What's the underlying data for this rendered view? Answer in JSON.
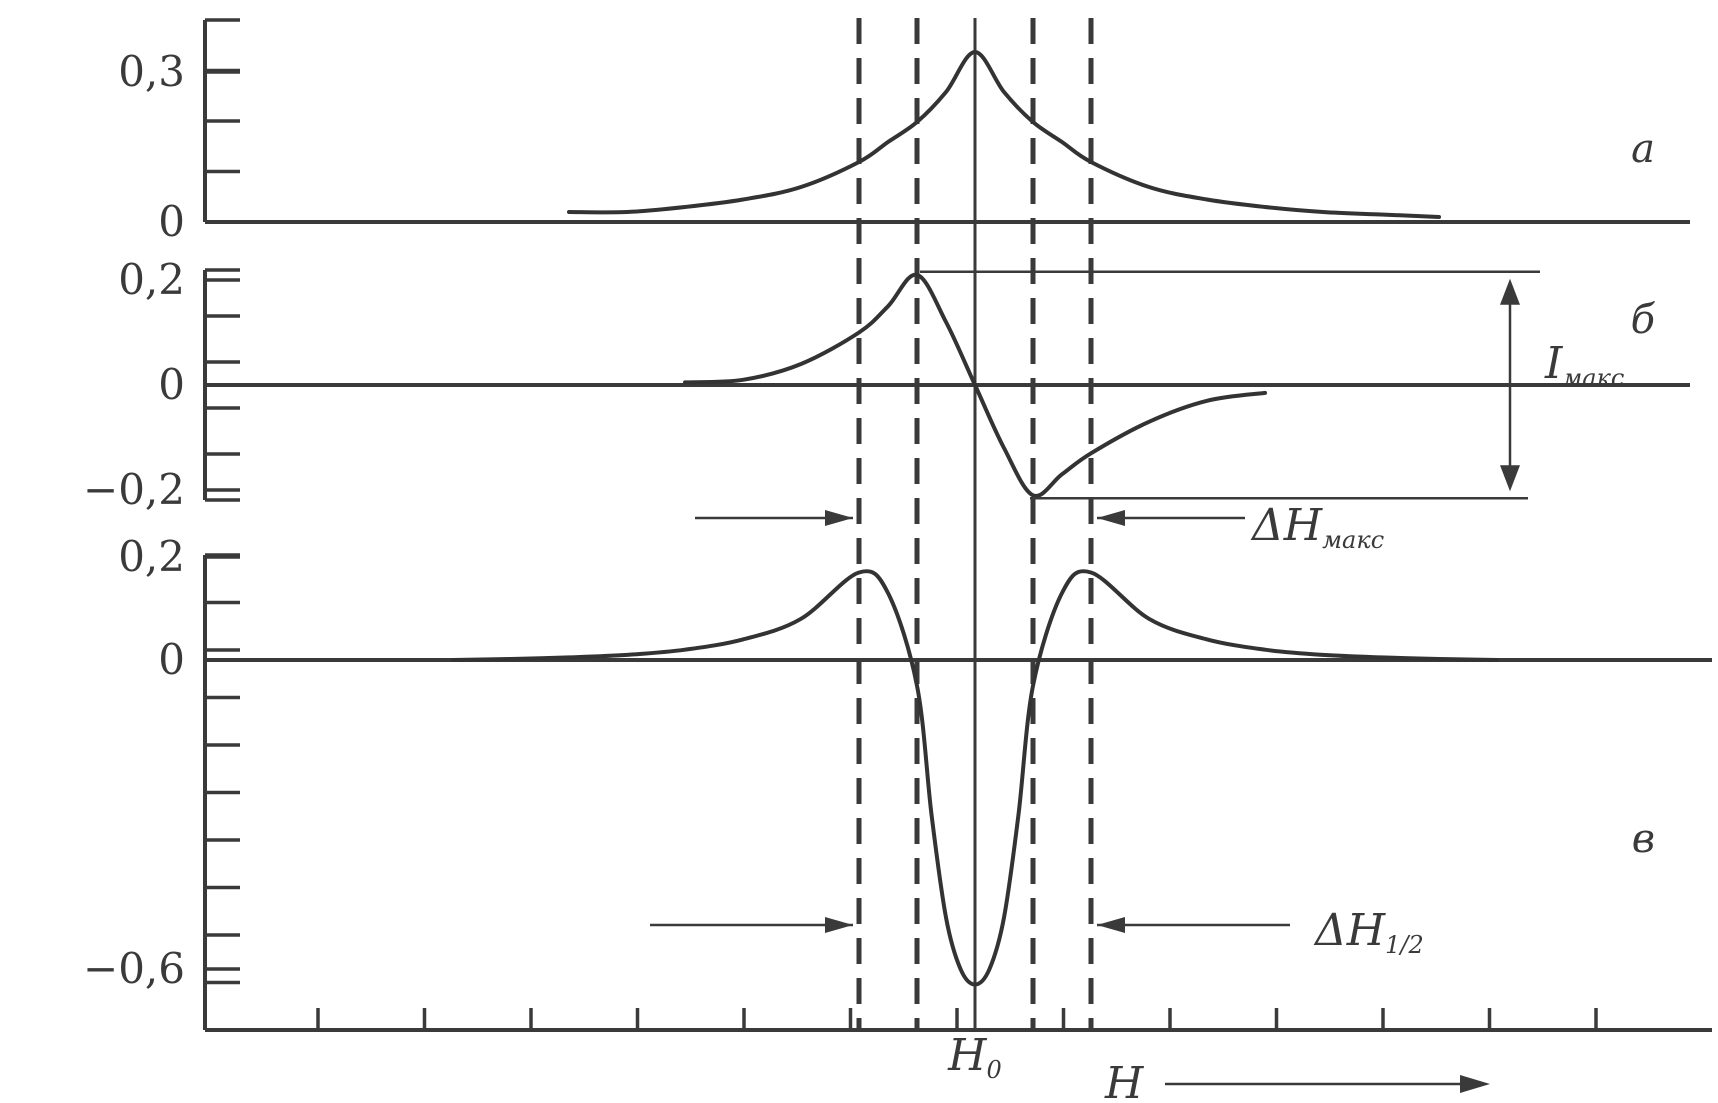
{
  "chart_data": [
    {
      "panel": "a",
      "type": "line",
      "yticks": [
        {
          "value": 0.3,
          "label": "0,3"
        },
        {
          "value": 0,
          "label": "0"
        }
      ],
      "ylim": [
        0,
        0.34
      ],
      "x": [
        -7,
        -6,
        -5,
        -4,
        -3,
        -2,
        -1.5,
        -1,
        -0.5,
        0,
        0.5,
        1,
        1.5,
        2,
        3,
        4,
        5,
        6,
        7,
        8
      ],
      "values": [
        0.02,
        0.02,
        0.03,
        0.045,
        0.07,
        0.12,
        0.16,
        0.2,
        0.26,
        0.34,
        0.26,
        0.2,
        0.16,
        0.12,
        0.07,
        0.045,
        0.03,
        0.02,
        0.015,
        0.01
      ]
    },
    {
      "panel": "б",
      "type": "line",
      "yticks": [
        {
          "value": 0.2,
          "label": "0,2"
        },
        {
          "value": 0,
          "label": "0"
        },
        {
          "value": -0.2,
          "label": "−0,2"
        }
      ],
      "ylim": [
        -0.22,
        0.22
      ],
      "x": [
        -5,
        -4,
        -3,
        -2,
        -1.5,
        -1,
        -0.5,
        0,
        0.5,
        1,
        1.5,
        2,
        3,
        4,
        5
      ],
      "values": [
        0.005,
        0.01,
        0.04,
        0.1,
        0.15,
        0.21,
        0.12,
        0.0,
        -0.12,
        -0.21,
        -0.17,
        -0.13,
        -0.07,
        -0.03,
        -0.015
      ]
    },
    {
      "panel": "в",
      "type": "line",
      "yticks": [
        {
          "value": 0.2,
          "label": "0,2"
        },
        {
          "value": 0,
          "label": "0"
        },
        {
          "value": -0.6,
          "label": "−0,6"
        }
      ],
      "ylim": [
        -0.72,
        0.2
      ],
      "x": [
        -9,
        -8,
        -7,
        -6,
        -5,
        -4,
        -3,
        -2,
        -1.5,
        -1,
        -0.75,
        -0.5,
        -0.25,
        0,
        0.25,
        0.5,
        0.75,
        1,
        1.5,
        2,
        3,
        4,
        5,
        6,
        7,
        8,
        9
      ],
      "values": [
        0.0,
        0.002,
        0.005,
        0.01,
        0.02,
        0.04,
        0.08,
        0.17,
        0.13,
        -0.05,
        -0.3,
        -0.5,
        -0.6,
        -0.63,
        -0.6,
        -0.5,
        -0.3,
        -0.05,
        0.13,
        0.17,
        0.08,
        0.04,
        0.02,
        0.01,
        0.005,
        0.002,
        0.0
      ]
    }
  ],
  "panel_labels": [
    "a",
    "б",
    "в"
  ],
  "annotations": {
    "i_max": {
      "main": "I",
      "sub": "макс"
    },
    "dh_max": {
      "main": "ΔH",
      "sub": "макс"
    },
    "dh_half": {
      "main": "ΔH",
      "sub": "1/2"
    },
    "h0": {
      "main": "H",
      "sub": "0"
    },
    "h_axis": "H"
  },
  "reference_lines": {
    "center": 0,
    "dashed": [
      -2,
      -1,
      1,
      2
    ]
  }
}
